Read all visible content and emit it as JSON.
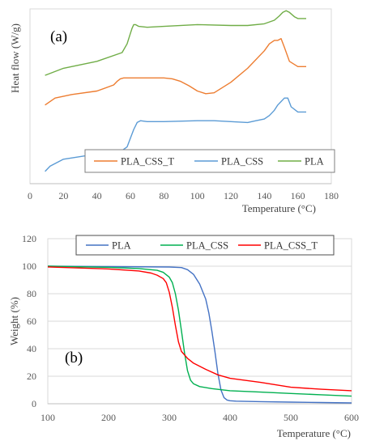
{
  "chart_data": [
    {
      "type": "line",
      "panel_label": "(a)",
      "xlabel": "Temperature (°C)",
      "ylabel": "Heat flow (W/g)",
      "xlim": [
        0,
        180
      ],
      "xticks": [
        "0",
        "20",
        "40",
        "60",
        "80",
        "100",
        "120",
        "140",
        "160",
        "180"
      ],
      "y_ticks_shown": false,
      "grid": false,
      "legend_placement": "bottom-center",
      "legend": [
        "PLA_CSS_T",
        "PLA_CSS",
        "PLA"
      ],
      "series": [
        {
          "name": "PLA",
          "color": "#70ad47",
          "x": [
            9,
            20,
            40,
            55,
            58,
            60,
            61,
            62,
            63,
            65,
            70,
            80,
            100,
            120,
            130,
            140,
            146,
            149,
            151,
            153,
            155,
            158,
            160,
            165
          ],
          "y": [
            0.62,
            0.66,
            0.7,
            0.75,
            0.8,
            0.86,
            0.89,
            0.91,
            0.91,
            0.9,
            0.895,
            0.9,
            0.91,
            0.905,
            0.905,
            0.915,
            0.935,
            0.96,
            0.98,
            0.99,
            0.98,
            0.955,
            0.945,
            0.945
          ]
        },
        {
          "name": "PLA_CSS_T",
          "color": "#ed7d31",
          "x": [
            9,
            15,
            25,
            40,
            50,
            52,
            54,
            56,
            60,
            70,
            80,
            85,
            90,
            95,
            100,
            105,
            110,
            120,
            130,
            140,
            143,
            146,
            148,
            150,
            152,
            155,
            160,
            165
          ],
          "y": [
            0.45,
            0.49,
            0.51,
            0.53,
            0.565,
            0.585,
            0.6,
            0.605,
            0.605,
            0.605,
            0.605,
            0.6,
            0.585,
            0.56,
            0.53,
            0.515,
            0.52,
            0.58,
            0.66,
            0.76,
            0.8,
            0.82,
            0.82,
            0.83,
            0.78,
            0.7,
            0.67,
            0.67
          ]
        },
        {
          "name": "PLA_CSS",
          "color": "#5b9bd5",
          "x": [
            9,
            12,
            20,
            40,
            55,
            58,
            60,
            62,
            64,
            66,
            70,
            80,
            100,
            110,
            120,
            130,
            135,
            140,
            143,
            146,
            148,
            150,
            152,
            154,
            156,
            160,
            165
          ],
          "y": [
            0.07,
            0.1,
            0.14,
            0.17,
            0.19,
            0.21,
            0.26,
            0.31,
            0.35,
            0.36,
            0.355,
            0.355,
            0.36,
            0.36,
            0.355,
            0.35,
            0.36,
            0.37,
            0.39,
            0.42,
            0.45,
            0.47,
            0.49,
            0.49,
            0.44,
            0.41,
            0.41
          ]
        }
      ]
    },
    {
      "type": "line",
      "panel_label": "(b)",
      "xlabel": "Temperature (°C)",
      "ylabel": "Weight (%)",
      "xlim": [
        100,
        600
      ],
      "ylim": [
        0,
        120
      ],
      "xticks": [
        "100",
        "200",
        "300",
        "400",
        "500",
        "600"
      ],
      "yticks": [
        "0",
        "20",
        "40",
        "60",
        "80",
        "100",
        "120"
      ],
      "grid": true,
      "legend_placement": "top-center",
      "legend": [
        "PLA",
        "PLA_CSS",
        "PLA_CSS_T"
      ],
      "series": [
        {
          "name": "PLA",
          "color": "#4472c4",
          "x": [
            100,
            200,
            300,
            320,
            330,
            340,
            350,
            360,
            365,
            370,
            375,
            380,
            385,
            390,
            395,
            400,
            410,
            450,
            500,
            550,
            600
          ],
          "y": [
            100,
            99.7,
            99.4,
            99,
            97.5,
            94,
            87,
            76,
            66,
            53,
            38,
            22,
            10,
            4.5,
            2.7,
            2.2,
            1.9,
            1.5,
            1.2,
            0.9,
            0.6
          ]
        },
        {
          "name": "PLA_CSS",
          "color": "#00b050",
          "x": [
            100,
            200,
            250,
            280,
            290,
            300,
            305,
            310,
            315,
            320,
            325,
            330,
            335,
            340,
            350,
            370,
            400,
            450,
            500,
            550,
            600
          ],
          "y": [
            100,
            99.2,
            98.3,
            97,
            95.5,
            92,
            88,
            80,
            68,
            53,
            37,
            24,
            17,
            14.5,
            12.5,
            11,
            9.5,
            8.5,
            7.5,
            6.5,
            5.5
          ]
        },
        {
          "name": "PLA_CSS_T",
          "color": "#ff0000",
          "x": [
            100,
            200,
            250,
            270,
            280,
            290,
            295,
            300,
            305,
            310,
            315,
            320,
            330,
            340,
            360,
            380,
            400,
            450,
            500,
            550,
            600
          ],
          "y": [
            99.5,
            98,
            96.5,
            95,
            93.5,
            91,
            88,
            81,
            70,
            57,
            45,
            38,
            33,
            29.5,
            25,
            21,
            18.5,
            15.5,
            12,
            10.5,
            9.5
          ]
        }
      ]
    }
  ]
}
